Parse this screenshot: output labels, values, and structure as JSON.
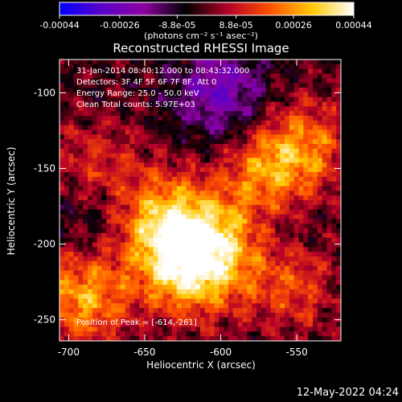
{
  "colorbar": {
    "tick_labels": [
      "-0.00044",
      "-0.00026",
      "-8.8e-05",
      "8.8e-05",
      "0.00026",
      "0.00044"
    ],
    "tick_values": [
      -0.00044,
      -0.00026,
      -8.8e-05,
      8.8e-05,
      0.00026,
      0.00044
    ],
    "units": "(photons cm⁻² s⁻¹ asec⁻²)",
    "colors": [
      "#0000ff",
      "#5a00c8",
      "#8c00a0",
      "#000000",
      "#b40028",
      "#ff5000",
      "#ffc800",
      "#ffffff"
    ]
  },
  "title": "Reconstructed RHESSI Image",
  "info_lines": [
    "31-Jan-2014 08:40:12.000 to 08:43:32.000",
    "Detectors: 3F 4F 5F 6F 7F 8F, Att 0",
    "Energy Range: 25.0 - 50.0 keV",
    "Clean     Total counts: 5.97E+03"
  ],
  "peak_text": "Position of Peak = [-614,-261]",
  "datestamp": "12-May-2022 04:24",
  "chart_data": {
    "type": "heatmap",
    "title": "Reconstructed RHESSI Image",
    "xlabel": "Heliocentric X (arcsec)",
    "ylabel": "Heliocentric Y (arcsec)",
    "xlim": [
      -706,
      -521
    ],
    "ylim": [
      -264,
      -78
    ],
    "x_ticks": [
      -700,
      -650,
      -600,
      -550
    ],
    "x_tick_labels": [
      "-700",
      "-650",
      "-600",
      "-550"
    ],
    "y_ticks": [
      -250,
      -200,
      -150,
      -100
    ],
    "y_tick_labels": [
      "-250",
      "-200",
      "-150",
      "-100"
    ],
    "value_range": [
      -0.00044,
      0.00044
    ],
    "peak_position": [
      -614,
      -261
    ],
    "bright_region_centers": [
      {
        "x": -620,
        "y": -215,
        "intensity": 1.0
      },
      {
        "x": -640,
        "y": -185,
        "intensity": 0.8
      },
      {
        "x": -690,
        "y": -235,
        "intensity": 0.75
      },
      {
        "x": -570,
        "y": -155,
        "intensity": 0.6
      },
      {
        "x": -545,
        "y": -135,
        "intensity": 0.55
      },
      {
        "x": -600,
        "y": -195,
        "intensity": 0.55
      },
      {
        "x": -555,
        "y": -225,
        "intensity": 0.5
      },
      {
        "x": -680,
        "y": -150,
        "intensity": 0.4
      }
    ],
    "dark_region_centers": [
      {
        "x": -600,
        "y": -100,
        "intensity": -0.6
      },
      {
        "x": -680,
        "y": -180,
        "intensity": -0.3
      },
      {
        "x": -560,
        "y": -190,
        "intensity": -0.25
      }
    ],
    "grid": false,
    "legend": "none"
  }
}
